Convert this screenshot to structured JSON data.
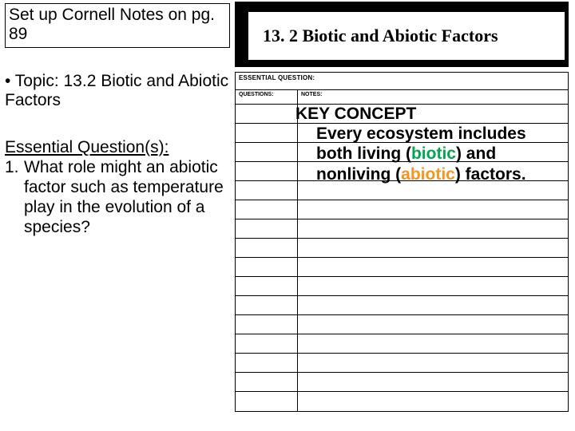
{
  "left": {
    "setup": "Set up Cornell Notes on pg. 89",
    "topic_bullet": "• Topic: 13.2 Biotic and Abiotic Factors",
    "eq_heading": "Essential Question(s):",
    "eq_num": "1.",
    "eq_text": "What role might an abiotic factor such as temperature play in the evolution of a species?"
  },
  "title": "13. 2 Biotic and Abiotic Factors",
  "cornell": {
    "eq_label": "ESSENTIAL QUESTION:",
    "q_label": "QUESTIONS:",
    "n_label": "NOTES:",
    "row_count": 16
  },
  "key": {
    "heading": "KEY CONCEPT",
    "line1a": "Every ecosystem includes",
    "line2a": "both living (",
    "line2b": "biotic",
    "line2c": ") and",
    "line3a": "nonliving (",
    "line3b": "abiotic",
    "line3c": ") factors."
  },
  "colors": {
    "biotic": "#00a650",
    "abiotic": "#f7941d",
    "text": "#000000",
    "bg": "#ffffff"
  }
}
